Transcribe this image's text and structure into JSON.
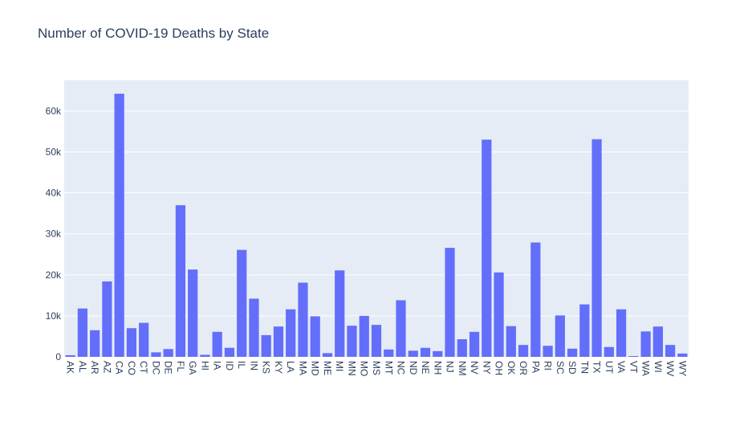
{
  "chart_data": {
    "type": "bar",
    "title": "Number of COVID-19 Deaths by State",
    "xlabel": "",
    "ylabel": "",
    "ylim": [
      0,
      67500
    ],
    "yticks": [
      0,
      10000,
      20000,
      30000,
      40000,
      50000,
      60000
    ],
    "ytick_labels": [
      "0",
      "10k",
      "20k",
      "30k",
      "40k",
      "50k",
      "60k"
    ],
    "grid": true,
    "colors": {
      "bar": "#636efa",
      "plot_bg": "#e5ecf6",
      "grid": "#ffffff",
      "text": "#2a3f5f"
    },
    "categories": [
      "AK",
      "AL",
      "AR",
      "AZ",
      "CA",
      "CO",
      "CT",
      "DC",
      "DE",
      "FL",
      "GA",
      "HI",
      "IA",
      "ID",
      "IL",
      "IN",
      "KS",
      "KY",
      "LA",
      "MA",
      "MD",
      "ME",
      "MI",
      "MN",
      "MO",
      "MS",
      "MT",
      "NC",
      "ND",
      "NE",
      "NH",
      "NJ",
      "NM",
      "NV",
      "NY",
      "OH",
      "OK",
      "OR",
      "PA",
      "RI",
      "SC",
      "SD",
      "TN",
      "TX",
      "UT",
      "VA",
      "VT",
      "WA",
      "WI",
      "WV",
      "WY"
    ],
    "values": [
      400,
      11800,
      6500,
      18400,
      64200,
      7000,
      8300,
      1100,
      1900,
      37000,
      21300,
      500,
      6100,
      2200,
      26100,
      14200,
      5300,
      7400,
      11600,
      18100,
      9900,
      900,
      21100,
      7600,
      10000,
      7800,
      1800,
      13800,
      1500,
      2200,
      1400,
      26600,
      4300,
      6100,
      53000,
      20600,
      7500,
      2900,
      27900,
      2700,
      10100,
      2000,
      12800,
      53100,
      2400,
      11600,
      200,
      6200,
      7400,
      2900,
      800
    ]
  }
}
